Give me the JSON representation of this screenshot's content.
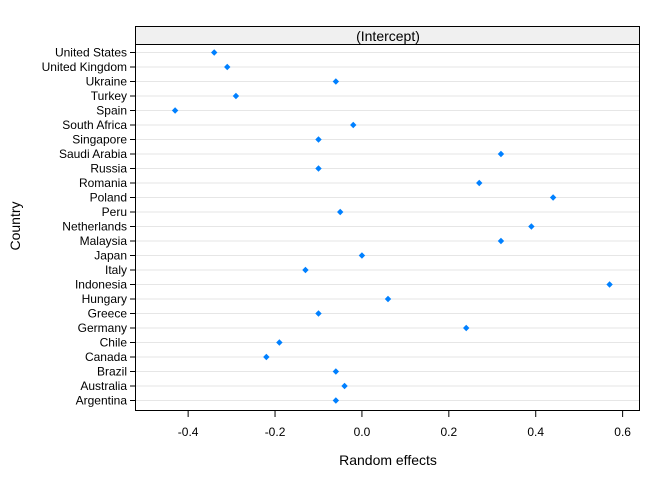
{
  "chart_data": {
    "type": "scatter",
    "title": "",
    "panel_label": "(Intercept)",
    "xlabel": "Random effects",
    "ylabel": "Country",
    "xlim": [
      -0.52,
      0.64
    ],
    "x_ticks": [
      -0.4,
      -0.2,
      0.0,
      0.2,
      0.4,
      0.6
    ],
    "x_tick_labels": [
      "-0.4",
      "-0.2",
      "0.0",
      "0.2",
      "0.4",
      "0.6"
    ],
    "grid": true,
    "point_color": "#0080ff",
    "categories": [
      "United States",
      "United Kingdom",
      "Ukraine",
      "Turkey",
      "Spain",
      "South Africa",
      "Singapore",
      "Saudi Arabia",
      "Russia",
      "Romania",
      "Poland",
      "Peru",
      "Netherlands",
      "Malaysia",
      "Japan",
      "Italy",
      "Indonesia",
      "Hungary",
      "Greece",
      "Germany",
      "Chile",
      "Canada",
      "Brazil",
      "Australia",
      "Argentina"
    ],
    "values": [
      -0.34,
      -0.31,
      -0.06,
      -0.29,
      -0.43,
      -0.02,
      -0.1,
      0.32,
      -0.1,
      0.27,
      0.44,
      -0.05,
      0.39,
      0.32,
      0.0,
      -0.13,
      0.57,
      0.06,
      -0.1,
      0.24,
      -0.19,
      -0.22,
      -0.06,
      -0.04,
      -0.06
    ]
  }
}
